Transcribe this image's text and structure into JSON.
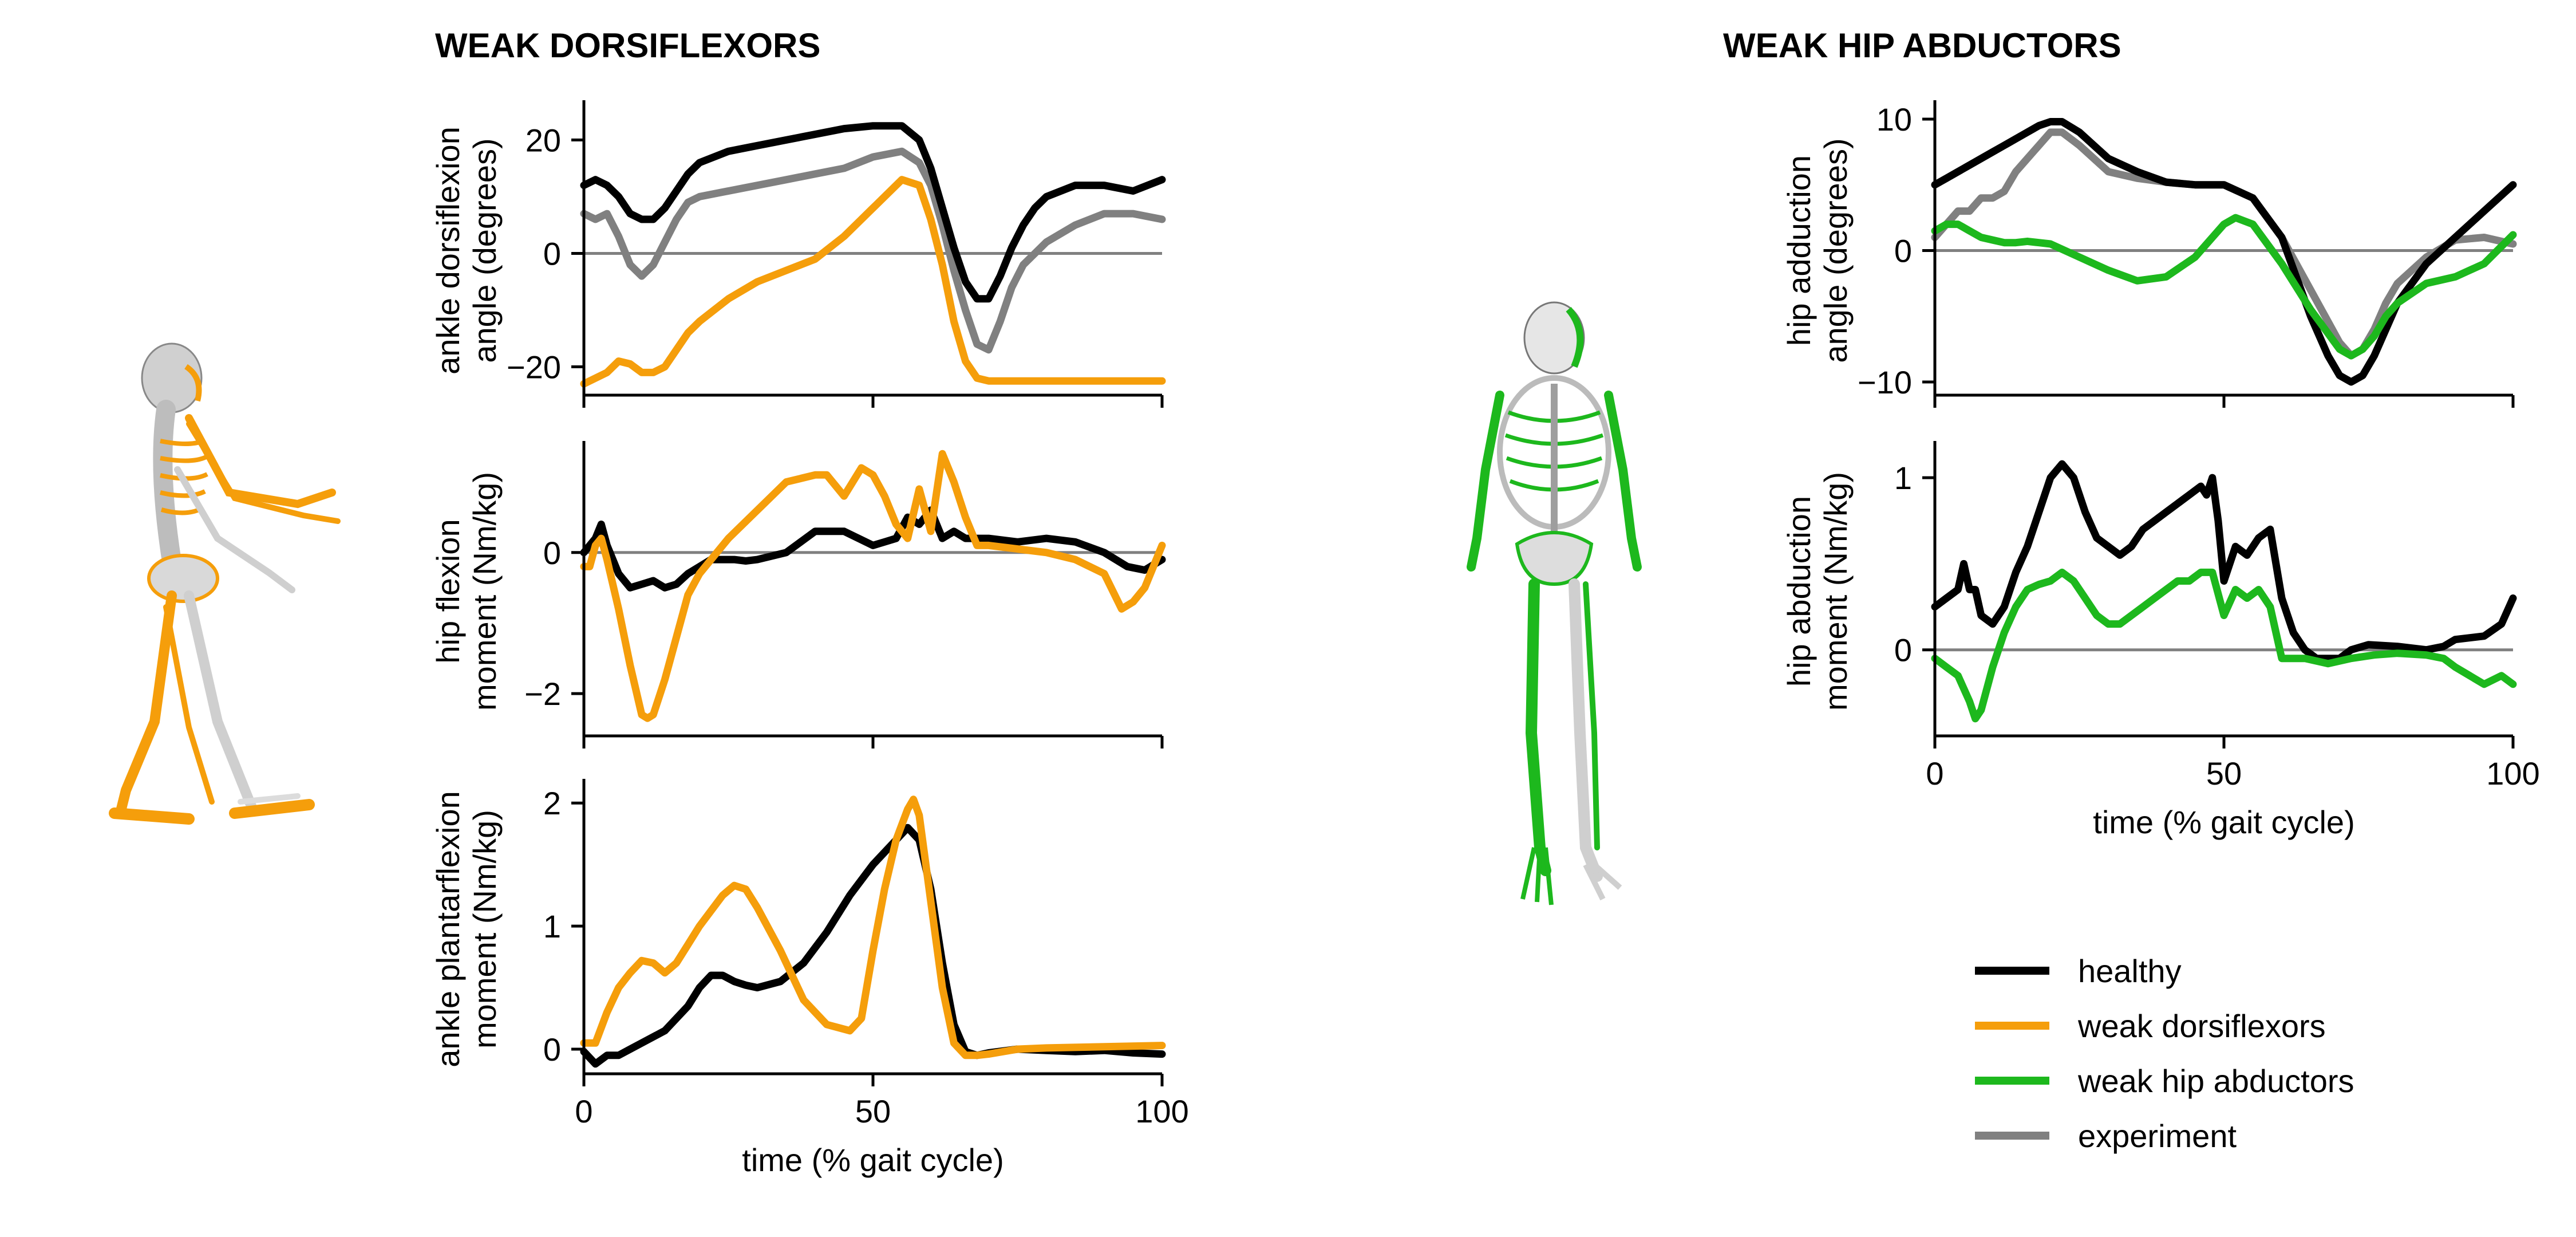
{
  "colors": {
    "healthy": "#000000",
    "weak_dorsiflexors": "#f59e0b",
    "weak_hip_abductors": "#1db81d",
    "experiment": "#808080",
    "zero_line": "#808080"
  },
  "left_panel": {
    "title": "WEAK DORSIFLEXORS",
    "figure_icon": "orange-skeleton-side-view"
  },
  "right_panel": {
    "title": "WEAK HIP ABDUCTORS",
    "figure_icon": "green-skeleton-front-view"
  },
  "legend": {
    "position": "lower-right",
    "items": [
      {
        "key": "healthy",
        "label": "healthy"
      },
      {
        "key": "weak_dorsiflexors",
        "label": "weak dorsiflexors"
      },
      {
        "key": "weak_hip_abductors",
        "label": "weak hip abductors"
      },
      {
        "key": "experiment",
        "label": "experiment"
      }
    ]
  },
  "chart_data": [
    {
      "id": "ankle_angle",
      "type": "line",
      "ylabel": [
        "ankle dorsiflexion",
        "angle (degrees)"
      ],
      "xlim": [
        0,
        100
      ],
      "ylim": [
        -25,
        26
      ],
      "yticks": [
        -20,
        0,
        20
      ],
      "xticks": [],
      "xticklabels": [],
      "xlabel": "",
      "zero_line": true,
      "series": [
        {
          "key": "experiment",
          "x": [
            0,
            2,
            4,
            6,
            8,
            10,
            12,
            14,
            16,
            18,
            20,
            25,
            30,
            35,
            40,
            45,
            50,
            55,
            58,
            60,
            62,
            64,
            66,
            68,
            70,
            72,
            74,
            76,
            78,
            80,
            85,
            90,
            95,
            100
          ],
          "y": [
            7,
            6,
            7,
            3,
            -2,
            -4,
            -2,
            2,
            6,
            9,
            10,
            11,
            12,
            13,
            14,
            15,
            17,
            18,
            16,
            12,
            5,
            -3,
            -10,
            -16,
            -17,
            -12,
            -6,
            -2,
            0,
            2,
            5,
            7,
            7,
            6
          ]
        },
        {
          "key": "healthy",
          "x": [
            0,
            2,
            4,
            6,
            8,
            10,
            12,
            14,
            16,
            18,
            20,
            25,
            30,
            35,
            40,
            45,
            50,
            55,
            58,
            60,
            62,
            64,
            66,
            68,
            70,
            72,
            74,
            76,
            78,
            80,
            85,
            90,
            95,
            100
          ],
          "y": [
            12,
            13,
            12,
            10,
            7,
            6,
            6,
            8,
            11,
            14,
            16,
            18,
            19,
            20,
            21,
            22,
            22.5,
            22.5,
            20,
            15,
            8,
            1,
            -5,
            -8,
            -8,
            -4,
            1,
            5,
            8,
            10,
            12,
            12,
            11,
            13
          ]
        },
        {
          "key": "weak_dorsiflexors",
          "x": [
            0,
            2,
            4,
            6,
            8,
            10,
            12,
            14,
            16,
            18,
            20,
            25,
            30,
            35,
            40,
            45,
            50,
            55,
            58,
            60,
            62,
            64,
            66,
            68,
            70,
            72,
            74,
            76,
            78,
            80,
            85,
            90,
            95,
            100
          ],
          "y": [
            -23,
            -22,
            -21,
            -19,
            -19.5,
            -21,
            -21,
            -20,
            -17,
            -14,
            -12,
            -8,
            -5,
            -3,
            -1,
            3,
            8,
            13,
            12,
            6,
            -2,
            -12,
            -19,
            -22,
            -22.5,
            -22.5,
            -22.5,
            -22.5,
            -22.5,
            -22.5,
            -22.5,
            -22.5,
            -22.5,
            -22.5
          ]
        }
      ]
    },
    {
      "id": "hip_flexion",
      "type": "line",
      "ylabel": [
        "hip flexion",
        "moment (Nm/kg)"
      ],
      "xlim": [
        0,
        100
      ],
      "ylim": [
        -2.6,
        1.5
      ],
      "yticks": [
        -2,
        0
      ],
      "xticks": [],
      "xticklabels": [],
      "xlabel": "",
      "zero_line": true,
      "series": [
        {
          "key": "healthy",
          "x": [
            0,
            2,
            3,
            4,
            6,
            8,
            10,
            12,
            14,
            16,
            18,
            20,
            22,
            24,
            26,
            28,
            30,
            35,
            40,
            45,
            50,
            52,
            54,
            56,
            58,
            60,
            62,
            64,
            66,
            70,
            75,
            80,
            85,
            90,
            94,
            97,
            100
          ],
          "y": [
            0,
            0.2,
            0.4,
            0.1,
            -0.3,
            -0.5,
            -0.45,
            -0.4,
            -0.5,
            -0.45,
            -0.3,
            -0.2,
            -0.1,
            -0.1,
            -0.1,
            -0.12,
            -0.1,
            0,
            0.3,
            0.3,
            0.1,
            0.15,
            0.2,
            0.5,
            0.4,
            0.6,
            0.2,
            0.3,
            0.2,
            0.2,
            0.15,
            0.2,
            0.15,
            0,
            -0.2,
            -0.25,
            -0.1
          ]
        },
        {
          "key": "weak_dorsiflexors",
          "x": [
            0,
            1,
            2,
            3,
            4,
            6,
            8,
            10,
            11,
            12,
            14,
            16,
            18,
            20,
            25,
            30,
            35,
            40,
            42,
            45,
            48,
            50,
            52,
            54,
            56,
            58,
            60,
            62,
            64,
            66,
            68,
            70,
            75,
            80,
            85,
            90,
            93,
            95,
            97,
            100
          ],
          "y": [
            -0.2,
            -0.2,
            0.1,
            0.2,
            -0.1,
            -0.8,
            -1.6,
            -2.3,
            -2.35,
            -2.3,
            -1.8,
            -1.2,
            -0.6,
            -0.3,
            0.2,
            0.6,
            1.0,
            1.1,
            1.1,
            0.8,
            1.2,
            1.1,
            0.8,
            0.4,
            0.2,
            0.9,
            0.3,
            1.4,
            1.0,
            0.5,
            0.1,
            0.1,
            0.05,
            0,
            -0.1,
            -0.3,
            -0.8,
            -0.7,
            -0.5,
            0.1
          ]
        }
      ]
    },
    {
      "id": "ankle_plantarflexion",
      "type": "line",
      "ylabel": [
        "ankle plantarflexion",
        "moment (Nm/kg)"
      ],
      "xlim": [
        0,
        100
      ],
      "ylim": [
        -0.2,
        2.15
      ],
      "yticks": [
        0,
        1,
        2
      ],
      "xticks": [
        0,
        50,
        100
      ],
      "xticklabels": [
        "0",
        "50",
        "100"
      ],
      "xlabel": "time (% gait cycle)",
      "zero_line": false,
      "series": [
        {
          "key": "healthy",
          "x": [
            0,
            2,
            4,
            6,
            8,
            10,
            12,
            14,
            16,
            18,
            20,
            22,
            24,
            26,
            28,
            30,
            34,
            38,
            42,
            46,
            50,
            53,
            56,
            58,
            60,
            62,
            64,
            66,
            68,
            70,
            75,
            80,
            85,
            90,
            95,
            100
          ],
          "y": [
            -0.02,
            -0.12,
            -0.05,
            -0.05,
            0,
            0.05,
            0.1,
            0.15,
            0.25,
            0.35,
            0.5,
            0.6,
            0.6,
            0.55,
            0.52,
            0.5,
            0.55,
            0.7,
            0.95,
            1.25,
            1.5,
            1.65,
            1.8,
            1.7,
            1.3,
            0.7,
            0.2,
            -0.02,
            -0.05,
            -0.03,
            0,
            -0.01,
            -0.02,
            -0.01,
            -0.03,
            -0.04
          ]
        },
        {
          "key": "weak_dorsiflexors",
          "x": [
            0,
            2,
            4,
            6,
            8,
            10,
            12,
            14,
            16,
            18,
            20,
            24,
            26,
            28,
            30,
            34,
            38,
            42,
            46,
            48,
            50,
            52,
            54,
            56,
            57,
            58,
            60,
            62,
            64,
            66,
            68,
            70,
            75,
            80,
            90,
            100
          ],
          "y": [
            0.05,
            0.05,
            0.3,
            0.5,
            0.62,
            0.72,
            0.7,
            0.62,
            0.7,
            0.85,
            1.0,
            1.25,
            1.33,
            1.3,
            1.15,
            0.8,
            0.4,
            0.2,
            0.15,
            0.25,
            0.8,
            1.3,
            1.7,
            1.95,
            2.03,
            1.9,
            1.2,
            0.5,
            0.05,
            -0.05,
            -0.05,
            -0.04,
            0,
            0.01,
            0.02,
            0.03
          ]
        }
      ]
    },
    {
      "id": "hip_adduction",
      "type": "line",
      "ylabel": [
        "hip adduction",
        "angle (degrees)"
      ],
      "xlim": [
        0,
        100
      ],
      "ylim": [
        -11,
        11
      ],
      "yticks": [
        -10,
        0,
        10
      ],
      "xticks": [],
      "xticklabels": [],
      "xlabel": "",
      "zero_line": true,
      "series": [
        {
          "key": "experiment",
          "x": [
            0,
            2,
            4,
            6,
            8,
            10,
            12,
            14,
            16,
            18,
            20,
            22,
            25,
            30,
            35,
            40,
            45,
            50,
            55,
            60,
            65,
            70,
            72,
            74,
            76,
            78,
            80,
            85,
            90,
            95,
            100
          ],
          "y": [
            1,
            2,
            3,
            3,
            4,
            4,
            4.5,
            6,
            7,
            8,
            9,
            9,
            8,
            6,
            5.5,
            5.2,
            5,
            5,
            4,
            1,
            -3,
            -7,
            -8,
            -7.5,
            -6,
            -4,
            -2.5,
            -0.5,
            0.8,
            1,
            0.5
          ]
        },
        {
          "key": "healthy",
          "x": [
            0,
            2,
            4,
            6,
            8,
            10,
            12,
            14,
            16,
            18,
            20,
            22,
            25,
            30,
            35,
            40,
            45,
            50,
            55,
            60,
            65,
            68,
            70,
            72,
            74,
            76,
            78,
            80,
            85,
            90,
            95,
            100
          ],
          "y": [
            5,
            5.5,
            6,
            6.5,
            7,
            7.5,
            8,
            8.5,
            9,
            9.5,
            9.8,
            9.8,
            9,
            7,
            6,
            5.2,
            5,
            5,
            4,
            1,
            -5,
            -8,
            -9.5,
            -10,
            -9.5,
            -8,
            -6,
            -4,
            -1,
            1,
            3,
            5
          ]
        },
        {
          "key": "weak_hip_abductors",
          "x": [
            0,
            2,
            4,
            6,
            8,
            10,
            12,
            14,
            16,
            18,
            20,
            25,
            30,
            35,
            40,
            45,
            48,
            50,
            52,
            55,
            60,
            65,
            70,
            72,
            74,
            76,
            78,
            80,
            85,
            90,
            95,
            100
          ],
          "y": [
            1.5,
            2,
            2,
            1.5,
            1,
            0.8,
            0.6,
            0.6,
            0.7,
            0.6,
            0.5,
            -0.5,
            -1.5,
            -2.3,
            -2,
            -0.5,
            1,
            2,
            2.5,
            2,
            -1,
            -4.5,
            -7.5,
            -8,
            -7.5,
            -6.5,
            -5,
            -4,
            -2.5,
            -2,
            -1,
            1.2
          ]
        }
      ]
    },
    {
      "id": "hip_abduction",
      "type": "line",
      "ylabel": [
        "hip abduction",
        "moment (Nm/kg)"
      ],
      "xlim": [
        0,
        100
      ],
      "ylim": [
        -0.5,
        1.18
      ],
      "yticks": [
        0,
        1
      ],
      "xticks": [
        0,
        50,
        100
      ],
      "xticklabels": [
        "0",
        "50",
        "100"
      ],
      "xlabel": "time (% gait cycle)",
      "zero_line": true,
      "series": [
        {
          "key": "healthy",
          "x": [
            0,
            2,
            4,
            5,
            6,
            7,
            8,
            10,
            12,
            14,
            16,
            18,
            20,
            22,
            24,
            26,
            28,
            30,
            32,
            34,
            36,
            38,
            40,
            42,
            44,
            46,
            47,
            48,
            49,
            50,
            52,
            54,
            56,
            58,
            60,
            62,
            64,
            66,
            68,
            70,
            72,
            75,
            80,
            85,
            88,
            90,
            95,
            98,
            100
          ],
          "y": [
            0.25,
            0.3,
            0.35,
            0.5,
            0.35,
            0.35,
            0.2,
            0.15,
            0.25,
            0.45,
            0.6,
            0.8,
            1.0,
            1.08,
            1.0,
            0.8,
            0.65,
            0.6,
            0.55,
            0.6,
            0.7,
            0.75,
            0.8,
            0.85,
            0.9,
            0.95,
            0.9,
            1.0,
            0.75,
            0.4,
            0.6,
            0.55,
            0.65,
            0.7,
            0.3,
            0.1,
            0,
            -0.05,
            -0.05,
            -0.05,
            0,
            0.03,
            0.02,
            0,
            0.02,
            0.06,
            0.08,
            0.15,
            0.3
          ]
        },
        {
          "key": "weak_hip_abductors",
          "x": [
            0,
            2,
            4,
            6,
            7,
            8,
            10,
            12,
            14,
            16,
            18,
            20,
            22,
            24,
            26,
            28,
            30,
            32,
            34,
            36,
            38,
            40,
            42,
            44,
            46,
            48,
            50,
            52,
            54,
            56,
            58,
            60,
            62,
            64,
            68,
            72,
            76,
            80,
            85,
            88,
            90,
            95,
            98,
            100
          ],
          "y": [
            -0.05,
            -0.1,
            -0.15,
            -0.3,
            -0.4,
            -0.35,
            -0.1,
            0.1,
            0.25,
            0.35,
            0.38,
            0.4,
            0.45,
            0.4,
            0.3,
            0.2,
            0.15,
            0.15,
            0.2,
            0.25,
            0.3,
            0.35,
            0.4,
            0.4,
            0.45,
            0.45,
            0.2,
            0.35,
            0.3,
            0.35,
            0.25,
            -0.05,
            -0.05,
            -0.05,
            -0.08,
            -0.05,
            -0.03,
            -0.02,
            -0.03,
            -0.05,
            -0.1,
            -0.2,
            -0.15,
            -0.2
          ]
        }
      ]
    }
  ]
}
